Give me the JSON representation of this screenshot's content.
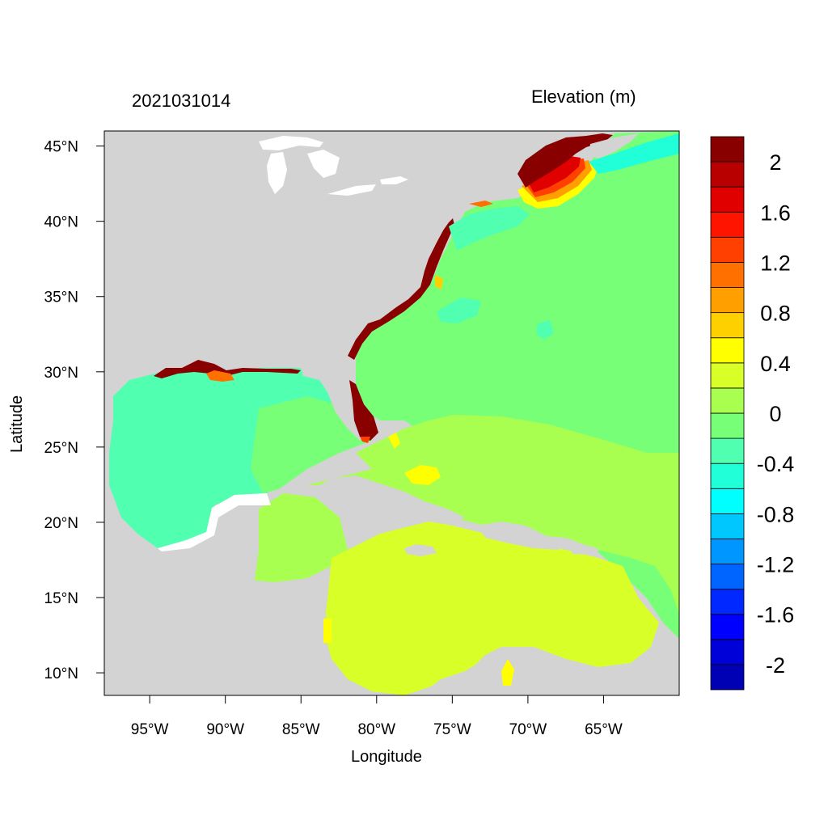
{
  "header": {
    "timestamp": "2021031014",
    "variable": "Elevation (m)"
  },
  "axes": {
    "xlabel": "Longitude",
    "ylabel": "Latitude",
    "lon_range": [
      -98.0,
      -60.0
    ],
    "lat_range": [
      8.5,
      46.0
    ],
    "x_ticks": [
      {
        "value": -95,
        "label": "95°W"
      },
      {
        "value": -90,
        "label": "90°W"
      },
      {
        "value": -85,
        "label": "85°W"
      },
      {
        "value": -80,
        "label": "80°W"
      },
      {
        "value": -75,
        "label": "75°W"
      },
      {
        "value": -70,
        "label": "70°W"
      },
      {
        "value": -65,
        "label": "65°W"
      }
    ],
    "y_ticks": [
      {
        "value": 45,
        "label": "45°N"
      },
      {
        "value": 40,
        "label": "40°N"
      },
      {
        "value": 35,
        "label": "35°N"
      },
      {
        "value": 30,
        "label": "30°N"
      },
      {
        "value": 25,
        "label": "25°N"
      },
      {
        "value": 20,
        "label": "20°N"
      },
      {
        "value": 15,
        "label": "15°N"
      },
      {
        "value": 10,
        "label": "10°N"
      }
    ]
  },
  "colorbar": {
    "colors": [
      "#0000b4",
      "#0000d8",
      "#0000ff",
      "#0028ff",
      "#0064ff",
      "#0096ff",
      "#00c8ff",
      "#00ffff",
      "#20ffd8",
      "#50ffb0",
      "#78ff78",
      "#a8ff50",
      "#d8ff28",
      "#ffff00",
      "#ffd000",
      "#ffa000",
      "#ff7000",
      "#ff4000",
      "#ff1400",
      "#e00000",
      "#b80000",
      "#880000"
    ],
    "labels": [
      {
        "value": 2,
        "label": "2"
      },
      {
        "value": 1.6,
        "label": "1.6"
      },
      {
        "value": 1.2,
        "label": "1.2"
      },
      {
        "value": 0.8,
        "label": "0.8"
      },
      {
        "value": 0.4,
        "label": "0.4"
      },
      {
        "value": 0,
        "label": "0"
      },
      {
        "value": -0.4,
        "label": "-0.4"
      },
      {
        "value": -0.8,
        "label": "-0.8"
      },
      {
        "value": -1.2,
        "label": "-1.2"
      },
      {
        "value": -1.6,
        "label": "-1.6"
      },
      {
        "value": -2,
        "label": "-2"
      }
    ]
  },
  "map_colors": {
    "land": "#d3d3d3",
    "lakes": "#ffffff",
    "gulf": "#50ffb0",
    "atlantic": "#78ff78",
    "caribbean_mid": "#a8ff50",
    "caribbean_south": "#d8ff28",
    "nantucket_high": "#880000",
    "florida_high": "#880000"
  }
}
